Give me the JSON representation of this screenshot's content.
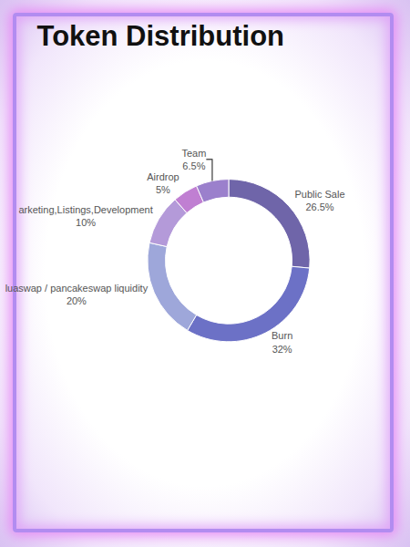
{
  "chart_data": {
    "type": "pie",
    "title": "Token Distribution",
    "categories": [
      "Public Sale",
      "Burn",
      "luaswap / pancakeswap liquidity",
      "arketing,Listings,Development",
      "Airdrop",
      "Team"
    ],
    "values": [
      26.5,
      32,
      20,
      10,
      5,
      6.5
    ],
    "value_labels": [
      "26.5%",
      "32%",
      "20%",
      "10%",
      "5%",
      "6.5%"
    ],
    "colors": [
      "#6f65a9",
      "#6c71c6",
      "#9ea7da",
      "#b49ad9",
      "#c07fd2",
      "#9b80cc"
    ],
    "data_labels": true
  }
}
